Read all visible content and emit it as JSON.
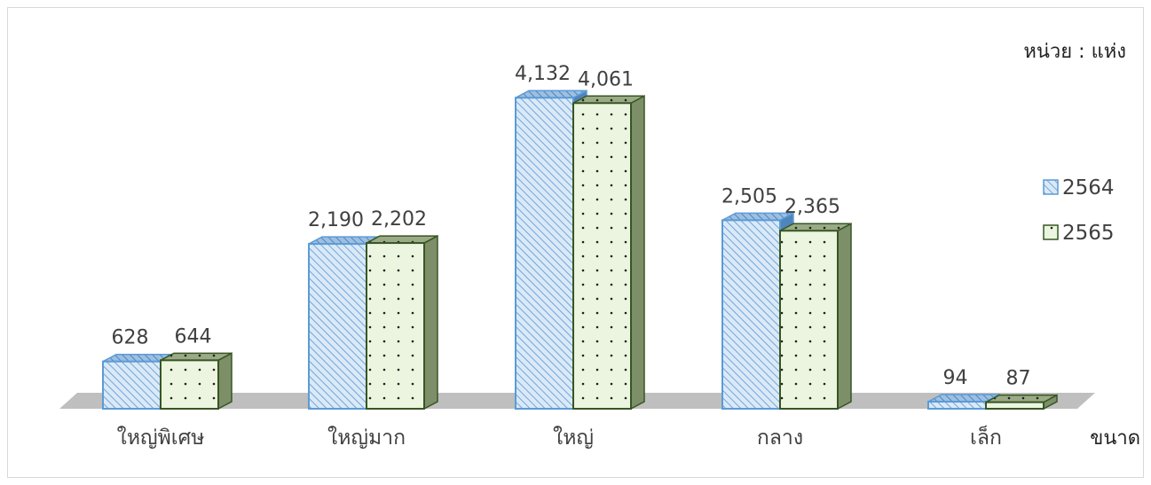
{
  "chart_data": {
    "type": "bar",
    "categories": [
      "ใหญ่พิเศษ",
      "ใหญ่มาก",
      "ใหญ่",
      "กลาง",
      "เล็ก"
    ],
    "series": [
      {
        "name": "2564",
        "values": [
          628,
          2190,
          4132,
          2505,
          94
        ],
        "labels": [
          "628",
          "2,190",
          "4,132",
          "2,505",
          "94"
        ]
      },
      {
        "name": "2565",
        "values": [
          644,
          2202,
          4061,
          2365,
          87
        ],
        "labels": [
          "644",
          "2,202",
          "4,061",
          "2,365",
          "87"
        ]
      }
    ],
    "unit_label": "หน่วย :  แห่ง",
    "xlabel": "ขนาด",
    "ylabel": "",
    "ylim": [
      0,
      4500
    ],
    "grid": false,
    "legend_position": "right",
    "colors": {
      "2564_fill": "#dbe9f7",
      "2564_hatch": "#5b9bd5",
      "2564_edge": "#5b9bd5",
      "2565_fill": "#ebf5df",
      "2565_dot": "#1f1f1f",
      "2565_edge": "#375623",
      "floor": "#bfbfbf"
    }
  }
}
